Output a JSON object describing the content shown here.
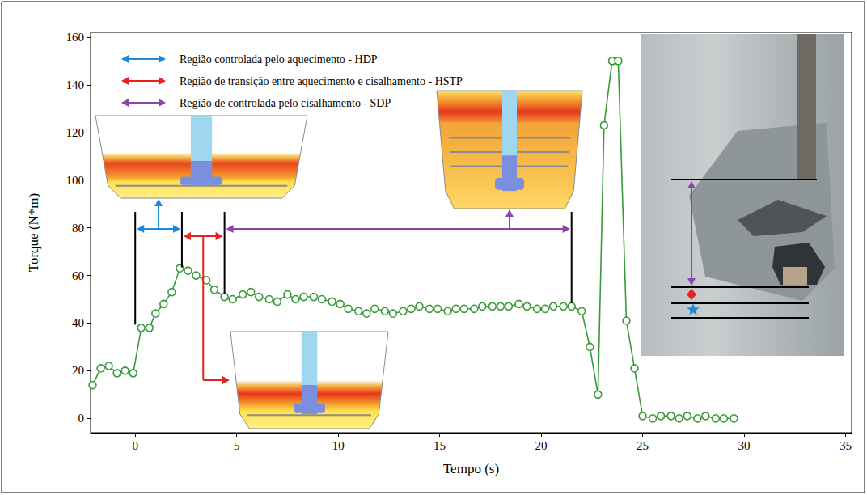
{
  "chart_data": {
    "type": "line",
    "x_label": "Tempo (s)",
    "y_label": "Torque (N*m)",
    "color": "#3a9a3a",
    "marker": "circle",
    "grid": false,
    "xlim": [
      -2.2,
      35.3
    ],
    "xticks": [
      0,
      5,
      10,
      15,
      20,
      25,
      30,
      35
    ],
    "ylim": [
      -6,
      162
    ],
    "yticks": [
      0,
      20,
      40,
      60,
      80,
      100,
      120,
      140,
      160
    ],
    "x": [
      -2.1,
      -1.7,
      -1.3,
      -0.9,
      -0.5,
      -0.1,
      0.3,
      0.7,
      1.0,
      1.4,
      1.8,
      2.2,
      2.6,
      3.0,
      3.5,
      3.9,
      4.4,
      4.8,
      5.3,
      5.7,
      6.1,
      6.6,
      7.0,
      7.5,
      7.9,
      8.3,
      8.8,
      9.2,
      9.7,
      10.1,
      10.5,
      11.0,
      11.4,
      11.8,
      12.3,
      12.7,
      13.2,
      13.6,
      14.0,
      14.5,
      14.9,
      15.4,
      15.8,
      16.2,
      16.7,
      17.1,
      17.6,
      18.0,
      18.4,
      18.9,
      19.3,
      19.8,
      20.2,
      20.6,
      21.1,
      21.5,
      22.0,
      22.4,
      22.8,
      23.1,
      23.5,
      23.8,
      24.2,
      24.6,
      25.0,
      25.5,
      25.9,
      26.4,
      26.8,
      27.2,
      27.7,
      28.1,
      28.6,
      29.0,
      29.5
    ],
    "values": [
      14,
      21,
      22,
      19,
      20,
      19,
      38,
      38,
      44,
      48,
      53,
      63,
      62,
      60,
      58,
      54,
      51,
      50,
      52,
      53,
      51,
      50,
      49,
      52,
      50,
      51,
      51,
      50,
      49,
      48,
      46,
      45,
      44,
      46,
      45,
      44,
      45,
      46,
      47,
      46,
      46,
      45,
      46,
      46,
      46,
      47,
      47,
      47,
      47,
      48,
      47,
      46,
      46,
      47,
      47,
      47,
      45,
      30,
      10,
      123,
      150,
      150,
      41,
      21,
      1,
      0,
      1,
      1,
      0,
      1,
      0,
      1,
      0,
      0,
      0
    ],
    "regions": [
      {
        "label": "Região controlada pelo aquecimento - HDP",
        "start": 0,
        "end": 2.3,
        "color": "#1e88d8"
      },
      {
        "label": "Região de transição entre aquecimento e cisalhamento - HSTP",
        "start": 2.3,
        "end": 4.4,
        "color": "#e8231f"
      },
      {
        "label": "Região de controlada pelo cisalhamento - SDP",
        "start": 4.4,
        "end": 21.5,
        "color": "#8e44ad"
      }
    ]
  }
}
